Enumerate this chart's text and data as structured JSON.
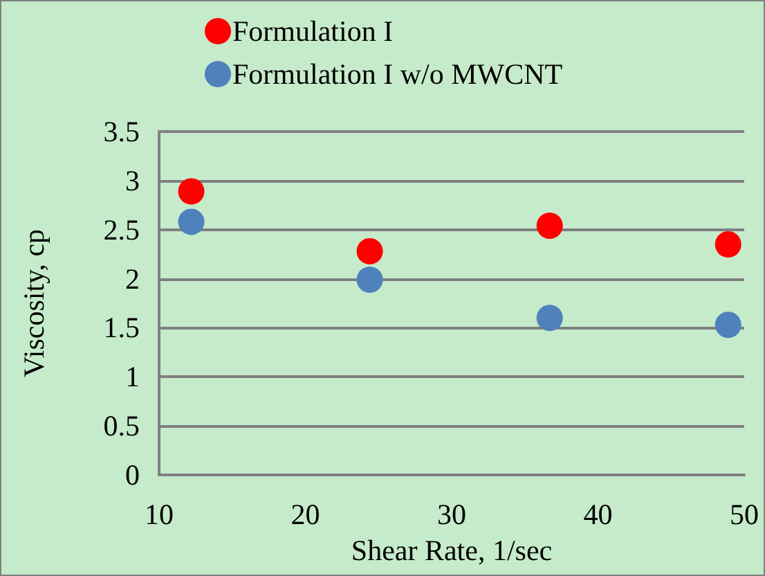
{
  "chart_data": {
    "type": "scatter",
    "xlabel": "Shear Rate, 1/sec",
    "ylabel": "Viscosity, cp",
    "x": [
      12.2,
      24.4,
      36.7,
      48.9
    ],
    "series": [
      {
        "name": "Formulation I",
        "color": "#ff0000",
        "values": [
          2.89,
          2.28,
          2.54,
          2.35
        ]
      },
      {
        "name": "Formulation I w/o MWCNT",
        "color": "#4f81bd",
        "values": [
          2.58,
          1.99,
          1.6,
          1.53
        ]
      }
    ],
    "xlim": [
      10,
      50
    ],
    "xticks": [
      10,
      20,
      30,
      40,
      50
    ],
    "ylim": [
      0,
      3.5
    ],
    "yticks": [
      0,
      0.5,
      1,
      1.5,
      2,
      2.5,
      3,
      3.5
    ],
    "grid": "y",
    "legend": "top left",
    "marker": "circle"
  }
}
